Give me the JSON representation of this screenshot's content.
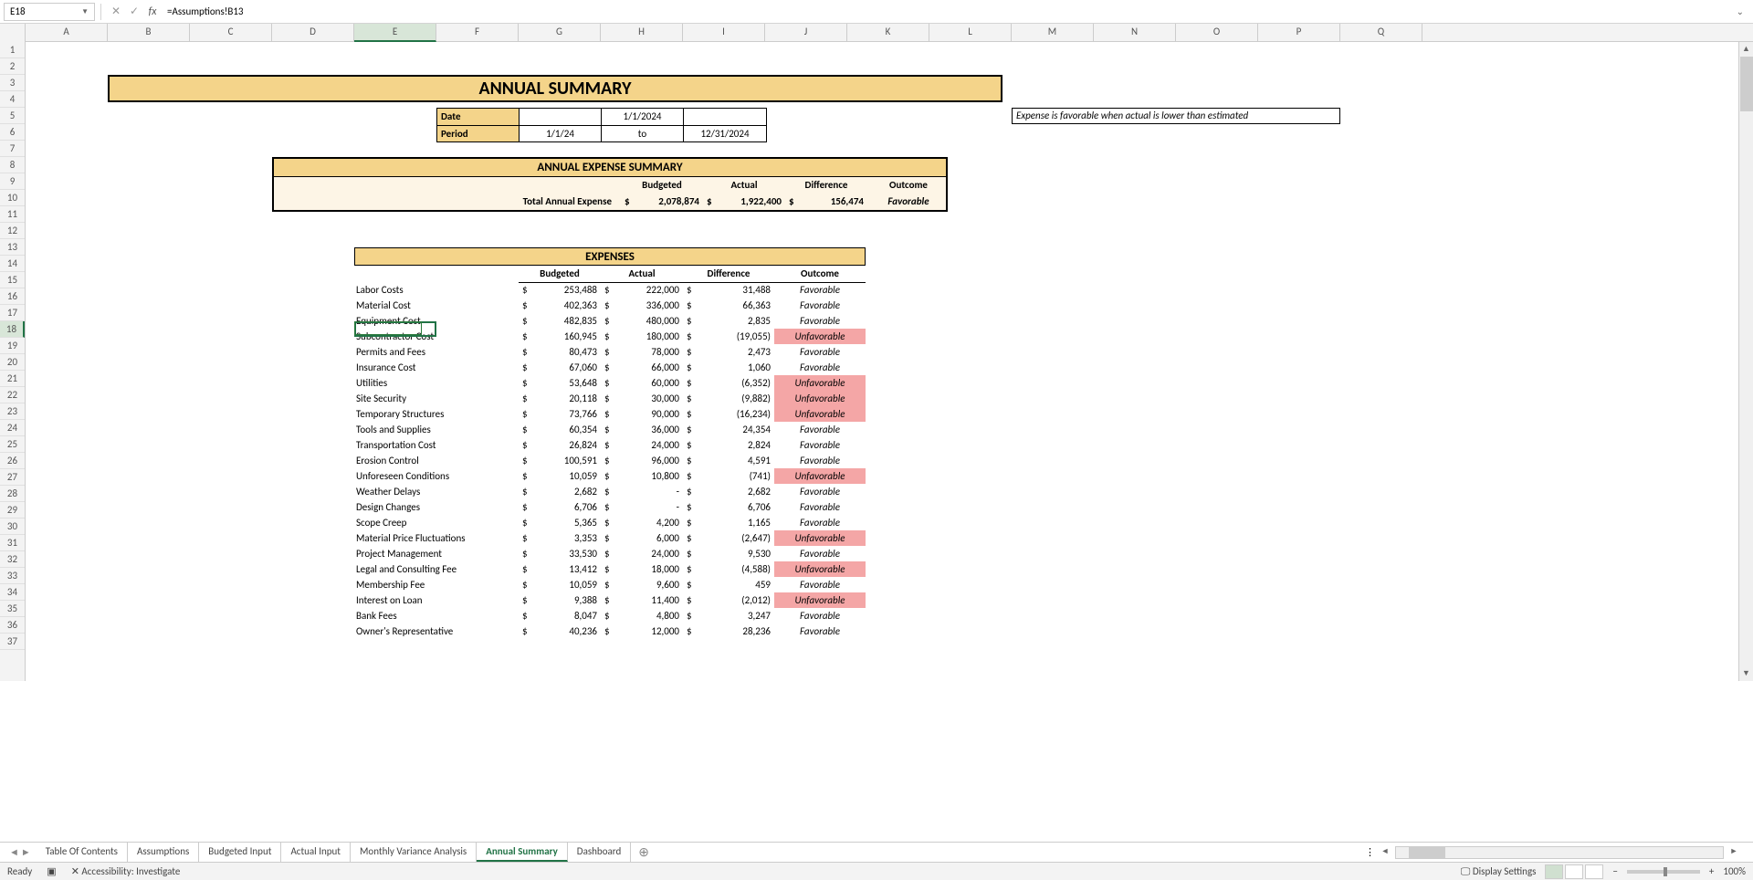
{
  "formula_bar": {
    "name_box": "E18",
    "formula": "=Assumptions!B13"
  },
  "columns": [
    "A",
    "B",
    "C",
    "D",
    "E",
    "F",
    "G",
    "H",
    "I",
    "J",
    "K",
    "L",
    "M",
    "N",
    "O",
    "P",
    "Q"
  ],
  "selected_col": "E",
  "rows": [
    "1",
    "2",
    "3",
    "4",
    "5",
    "6",
    "7",
    "8",
    "9",
    "10",
    "11",
    "12",
    "13",
    "14",
    "15",
    "16",
    "17",
    "18",
    "19",
    "20",
    "21",
    "22",
    "23",
    "24",
    "25",
    "26",
    "27",
    "28",
    "29",
    "30",
    "31",
    "32",
    "33",
    "34",
    "35",
    "36",
    "37"
  ],
  "selected_row": "18",
  "title": "ANNUAL SUMMARY",
  "note": "Expense is favorable when actual is lower than estimated",
  "date_block": {
    "date_label": "Date",
    "date_value": "1/1/2024",
    "period_label": "Period",
    "period_start": "1/1/24",
    "period_to": "to",
    "period_end": "12/31/2024"
  },
  "summary": {
    "title": "ANNUAL EXPENSE SUMMARY",
    "h_budgeted": "Budgeted",
    "h_actual": "Actual",
    "h_diff": "Difference",
    "h_outcome": "Outcome",
    "row_label": "Total Annual Expense",
    "budgeted": "2,078,874",
    "actual": "1,922,400",
    "diff": "156,474",
    "outcome": "Favorable"
  },
  "expenses": {
    "title": "EXPENSES",
    "h_budgeted": "Budgeted",
    "h_actual": "Actual",
    "h_diff": "Difference",
    "h_outcome": "Outcome",
    "rows": [
      {
        "name": "Labor Costs",
        "b": "253,488",
        "a": "222,000",
        "d": "31,488",
        "o": "Favorable",
        "u": false
      },
      {
        "name": "Material Cost",
        "b": "402,363",
        "a": "336,000",
        "d": "66,363",
        "o": "Favorable",
        "u": false
      },
      {
        "name": "Equipment Cost",
        "b": "482,835",
        "a": "480,000",
        "d": "2,835",
        "o": "Favorable",
        "u": false
      },
      {
        "name": "Subcontractor Cost",
        "b": "160,945",
        "a": "180,000",
        "d": "(19,055)",
        "o": "Unfavorable",
        "u": true
      },
      {
        "name": "Permits and Fees",
        "b": "80,473",
        "a": "78,000",
        "d": "2,473",
        "o": "Favorable",
        "u": false
      },
      {
        "name": "Insurance Cost",
        "b": "67,060",
        "a": "66,000",
        "d": "1,060",
        "o": "Favorable",
        "u": false
      },
      {
        "name": "Utilities",
        "b": "53,648",
        "a": "60,000",
        "d": "(6,352)",
        "o": "Unfavorable",
        "u": true
      },
      {
        "name": "Site Security",
        "b": "20,118",
        "a": "30,000",
        "d": "(9,882)",
        "o": "Unfavorable",
        "u": true
      },
      {
        "name": "Temporary Structures",
        "b": "73,766",
        "a": "90,000",
        "d": "(16,234)",
        "o": "Unfavorable",
        "u": true
      },
      {
        "name": "Tools and Supplies",
        "b": "60,354",
        "a": "36,000",
        "d": "24,354",
        "o": "Favorable",
        "u": false
      },
      {
        "name": "Transportation Cost",
        "b": "26,824",
        "a": "24,000",
        "d": "2,824",
        "o": "Favorable",
        "u": false
      },
      {
        "name": "Erosion Control",
        "b": "100,591",
        "a": "96,000",
        "d": "4,591",
        "o": "Favorable",
        "u": false
      },
      {
        "name": "Unforeseen Conditions",
        "b": "10,059",
        "a": "10,800",
        "d": "(741)",
        "o": "Unfavorable",
        "u": true
      },
      {
        "name": "Weather Delays",
        "b": "2,682",
        "a": "-",
        "d": "2,682",
        "o": "Favorable",
        "u": false
      },
      {
        "name": "Design Changes",
        "b": "6,706",
        "a": "-",
        "d": "6,706",
        "o": "Favorable",
        "u": false
      },
      {
        "name": "Scope Creep",
        "b": "5,365",
        "a": "4,200",
        "d": "1,165",
        "o": "Favorable",
        "u": false
      },
      {
        "name": "Material Price Fluctuations",
        "b": "3,353",
        "a": "6,000",
        "d": "(2,647)",
        "o": "Unfavorable",
        "u": true
      },
      {
        "name": "Project Management",
        "b": "33,530",
        "a": "24,000",
        "d": "9,530",
        "o": "Favorable",
        "u": false
      },
      {
        "name": "Legal and Consulting Fee",
        "b": "13,412",
        "a": "18,000",
        "d": "(4,588)",
        "o": "Unfavorable",
        "u": true
      },
      {
        "name": "Membership Fee",
        "b": "10,059",
        "a": "9,600",
        "d": "459",
        "o": "Favorable",
        "u": false
      },
      {
        "name": "Interest on Loan",
        "b": "9,388",
        "a": "11,400",
        "d": "(2,012)",
        "o": "Unfavorable",
        "u": true
      },
      {
        "name": "Bank Fees",
        "b": "8,047",
        "a": "4,800",
        "d": "3,247",
        "o": "Favorable",
        "u": false
      },
      {
        "name": "Owner's Representative",
        "b": "40,236",
        "a": "12,000",
        "d": "28,236",
        "o": "Favorable",
        "u": false
      }
    ]
  },
  "sheet_tabs": [
    "Table Of Contents",
    "Assumptions",
    "Budgeted Input",
    "Actual Input",
    "Monthly Variance Analysis",
    "Annual Summary",
    "Dashboard"
  ],
  "active_tab": "Annual Summary",
  "status": {
    "ready": "Ready",
    "accessibility": "Accessibility: Investigate",
    "display_settings": "Display Settings",
    "zoom": "100%"
  }
}
